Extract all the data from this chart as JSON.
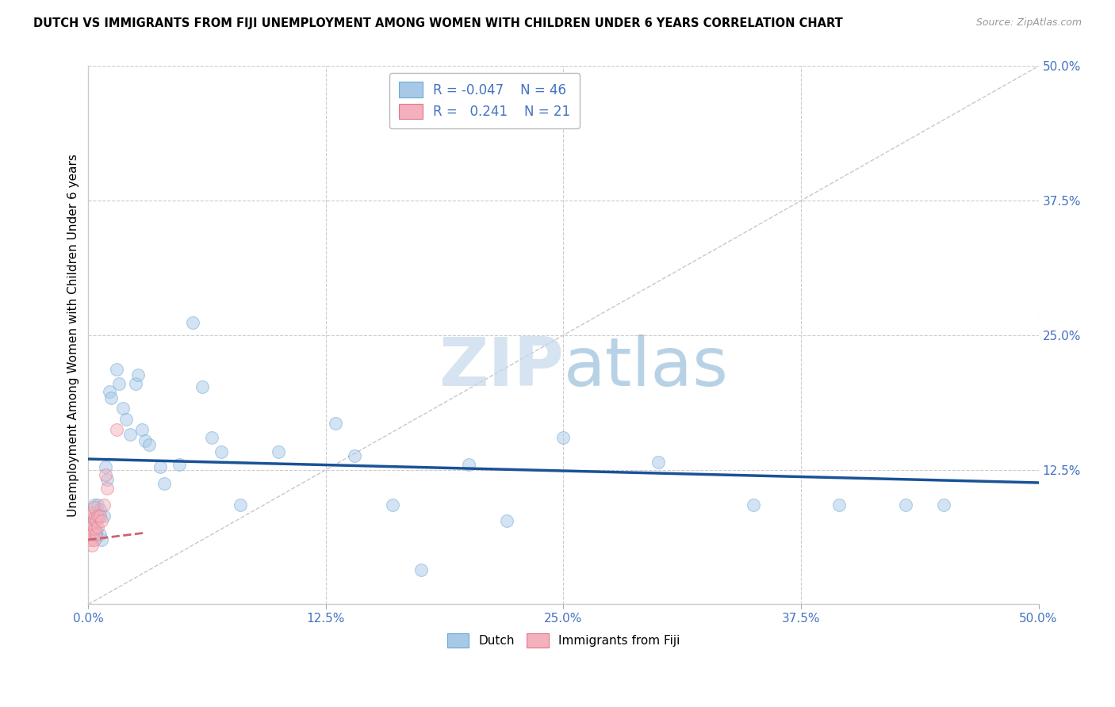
{
  "title": "DUTCH VS IMMIGRANTS FROM FIJI UNEMPLOYMENT AMONG WOMEN WITH CHILDREN UNDER 6 YEARS CORRELATION CHART",
  "source": "Source: ZipAtlas.com",
  "ylabel": "Unemployment Among Women with Children Under 6 years",
  "xlim": [
    0,
    0.5
  ],
  "ylim": [
    0,
    0.5
  ],
  "xtick_vals": [
    0.0,
    0.125,
    0.25,
    0.375,
    0.5
  ],
  "ytick_vals": [
    0.0,
    0.125,
    0.25,
    0.375,
    0.5
  ],
  "xticklabels": [
    "0.0%",
    "12.5%",
    "25.0%",
    "37.5%",
    "50.0%"
  ],
  "yticklabels": [
    "",
    "12.5%",
    "25.0%",
    "37.5%",
    "50.0%"
  ],
  "dutch_color": "#a8c8e8",
  "fiji_color": "#f4b0bc",
  "dutch_edge_color": "#6aaad4",
  "fiji_edge_color": "#e07888",
  "blue_line_color": "#1a5296",
  "pink_line_color": "#d06070",
  "ref_line_color": "#c8c8c8",
  "watermark_color": "#c5d8ea",
  "tick_color": "#4472c4",
  "legend_R_dutch": "-0.047",
  "legend_N_dutch": "46",
  "legend_R_fiji": "0.241",
  "legend_N_fiji": "21",
  "dutch_x": [
    0.002,
    0.003,
    0.003,
    0.004,
    0.004,
    0.005,
    0.005,
    0.006,
    0.006,
    0.007,
    0.008,
    0.009,
    0.01,
    0.011,
    0.012,
    0.015,
    0.016,
    0.018,
    0.02,
    0.022,
    0.025,
    0.026,
    0.028,
    0.03,
    0.032,
    0.038,
    0.04,
    0.048,
    0.055,
    0.06,
    0.065,
    0.07,
    0.08,
    0.1,
    0.13,
    0.175,
    0.22,
    0.3,
    0.35,
    0.395,
    0.43,
    0.45,
    0.2,
    0.25,
    0.16,
    0.14
  ],
  "dutch_y": [
    0.083,
    0.077,
    0.092,
    0.062,
    0.068,
    0.08,
    0.092,
    0.088,
    0.065,
    0.06,
    0.082,
    0.128,
    0.116,
    0.198,
    0.192,
    0.218,
    0.205,
    0.182,
    0.172,
    0.158,
    0.205,
    0.213,
    0.162,
    0.152,
    0.148,
    0.128,
    0.112,
    0.13,
    0.262,
    0.202,
    0.155,
    0.142,
    0.092,
    0.142,
    0.168,
    0.032,
    0.078,
    0.132,
    0.092,
    0.092,
    0.092,
    0.092,
    0.13,
    0.155,
    0.092,
    0.138
  ],
  "fiji_x": [
    0.001,
    0.001,
    0.001,
    0.002,
    0.002,
    0.002,
    0.002,
    0.003,
    0.003,
    0.003,
    0.003,
    0.004,
    0.004,
    0.005,
    0.005,
    0.006,
    0.007,
    0.008,
    0.009,
    0.01,
    0.015
  ],
  "fiji_y": [
    0.06,
    0.07,
    0.082,
    0.055,
    0.065,
    0.075,
    0.085,
    0.06,
    0.07,
    0.08,
    0.09,
    0.065,
    0.078,
    0.072,
    0.082,
    0.082,
    0.078,
    0.092,
    0.12,
    0.108,
    0.162
  ],
  "marker_size": 130,
  "alpha_dutch": 0.5,
  "alpha_fiji": 0.5,
  "blue_line_y0": 0.135,
  "blue_line_y1": 0.113,
  "pink_line_y0": 0.06,
  "pink_line_y1": 0.168
}
